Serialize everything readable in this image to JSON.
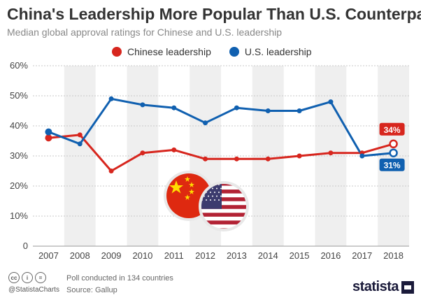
{
  "header": {
    "title": "China's Leadership More Popular Than U.S. Counterpart",
    "subtitle": "Median global approval ratings for Chinese and U.S. leadership"
  },
  "footer": {
    "handle": "@StatistaCharts",
    "poll_note": "Poll conducted in 134 countries",
    "source": "Source: Gallup",
    "logo": "statista",
    "license_icons": [
      "cc",
      "i",
      "="
    ]
  },
  "chart_data": {
    "type": "line",
    "title": "China's Leadership More Popular Than U.S. Counterpart",
    "subtitle": "Median global approval ratings for Chinese and U.S. leadership",
    "categories": [
      "2007",
      "2008",
      "2009",
      "2010",
      "2011",
      "2012",
      "2013",
      "2014",
      "2015",
      "2016",
      "2017",
      "2018"
    ],
    "series": [
      {
        "name": "Chinese leadership",
        "color": "#d7261e",
        "values": [
          36,
          37,
          25,
          31,
          32,
          29,
          29,
          29,
          30,
          31,
          31,
          34
        ],
        "end_label": "34%"
      },
      {
        "name": "U.S. leadership",
        "color": "#1060b0",
        "values": [
          38,
          34,
          49,
          47,
          46,
          41,
          46,
          45,
          45,
          48,
          30,
          31
        ],
        "end_label": "31%"
      }
    ],
    "yticks": [
      "0",
      "10%",
      "20%",
      "30%",
      "40%",
      "50%",
      "60%"
    ],
    "ylim": [
      0,
      60
    ],
    "grid": true,
    "legend": "top",
    "xlabel": "",
    "ylabel": "",
    "decoration": [
      "china-flag",
      "usa-flag"
    ]
  }
}
